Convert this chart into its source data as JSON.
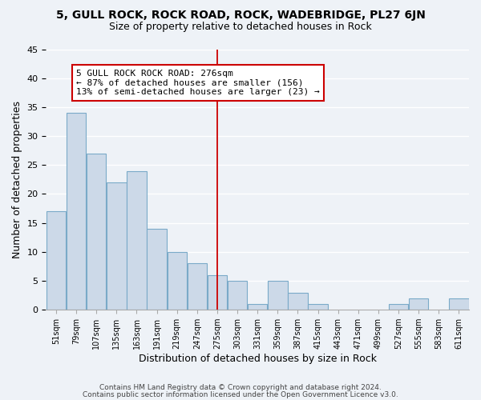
{
  "title": "5, GULL ROCK, ROCK ROAD, ROCK, WADEBRIDGE, PL27 6JN",
  "subtitle": "Size of property relative to detached houses in Rock",
  "xlabel": "Distribution of detached houses by size in Rock",
  "ylabel": "Number of detached properties",
  "footer_line1": "Contains HM Land Registry data © Crown copyright and database right 2024.",
  "footer_line2": "Contains public sector information licensed under the Open Government Licence v3.0.",
  "annotation_title": "5 GULL ROCK ROCK ROAD: 276sqm",
  "annotation_line1": "← 87% of detached houses are smaller (156)",
  "annotation_line2": "13% of semi-detached houses are larger (23) →",
  "bar_color": "#ccd9e8",
  "bar_edge_color": "#7aaac8",
  "reference_line_color": "#cc0000",
  "bin_width": 28,
  "bins": [
    51,
    79,
    107,
    135,
    163,
    191,
    219,
    247,
    275,
    303,
    331,
    359,
    387,
    415,
    443,
    471,
    499,
    527,
    555,
    583,
    611
  ],
  "bin_labels": [
    "51sqm",
    "79sqm",
    "107sqm",
    "135sqm",
    "163sqm",
    "191sqm",
    "219sqm",
    "247sqm",
    "275sqm",
    "303sqm",
    "331sqm",
    "359sqm",
    "387sqm",
    "415sqm",
    "443sqm",
    "471sqm",
    "499sqm",
    "527sqm",
    "555sqm",
    "583sqm",
    "611sqm"
  ],
  "values": [
    17,
    34,
    27,
    22,
    24,
    14,
    10,
    8,
    6,
    5,
    1,
    5,
    3,
    1,
    0,
    0,
    0,
    1,
    2,
    0,
    2
  ],
  "ylim": [
    0,
    45
  ],
  "yticks": [
    0,
    5,
    10,
    15,
    20,
    25,
    30,
    35,
    40,
    45
  ],
  "background_color": "#eef2f7",
  "grid_color": "#ffffff",
  "annotation_box_facecolor": "#ffffff",
  "annotation_box_edgecolor": "#cc0000",
  "title_fontsize": 10,
  "subtitle_fontsize": 9,
  "axis_label_fontsize": 9,
  "tick_fontsize": 8,
  "xtick_fontsize": 7,
  "annotation_fontsize": 8,
  "footer_fontsize": 6.5
}
